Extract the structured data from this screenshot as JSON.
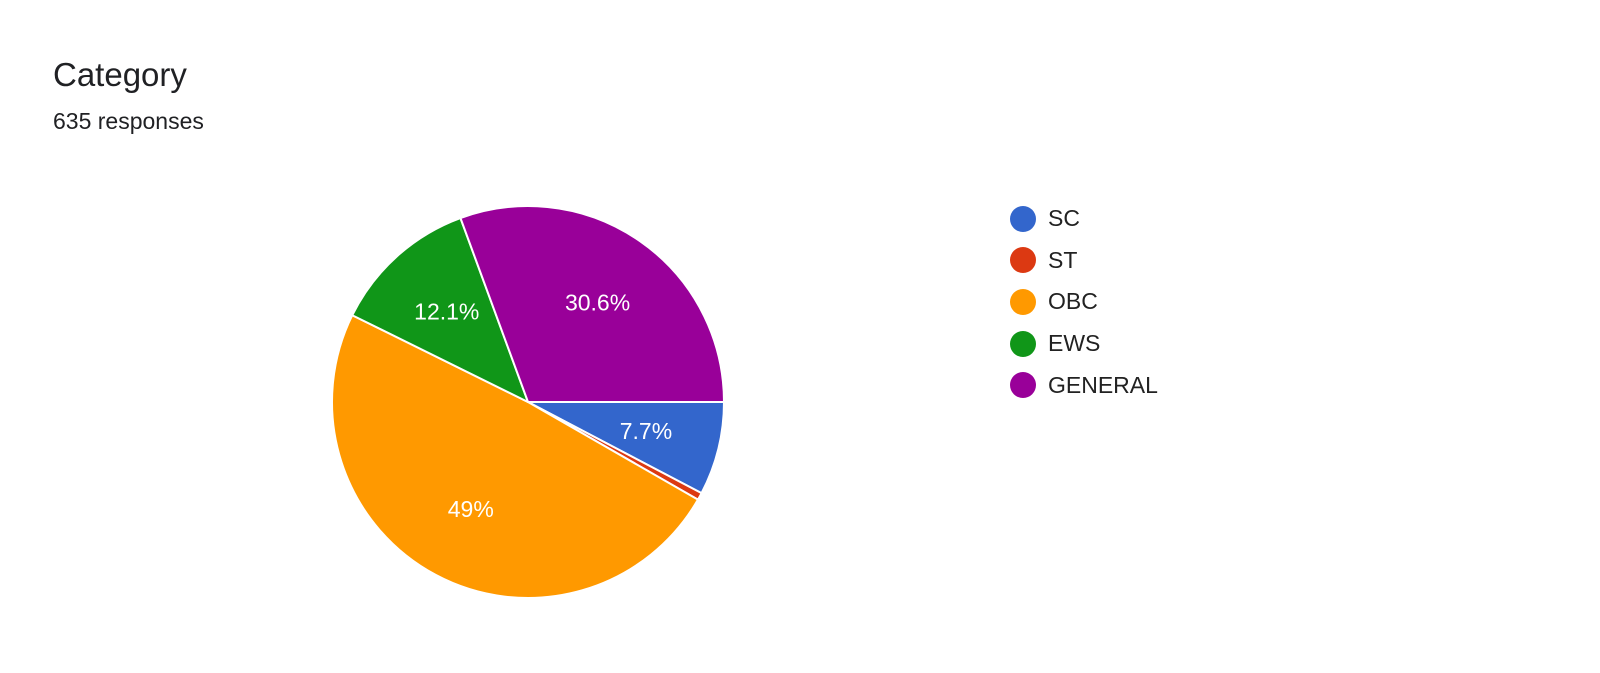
{
  "header": {
    "title": "Category",
    "subtitle": "635 responses"
  },
  "chart_data": {
    "type": "pie",
    "start_angle_deg": 90,
    "direction": "clockwise",
    "slices": [
      {
        "name": "SC",
        "label": "7.7%",
        "value": 7.7,
        "color": "#3366cc"
      },
      {
        "name": "ST",
        "label": "",
        "value": 0.6,
        "color": "#dc3912"
      },
      {
        "name": "OBC",
        "label": "49%",
        "value": 49.0,
        "color": "#ff9900"
      },
      {
        "name": "EWS",
        "label": "12.1%",
        "value": 12.1,
        "color": "#109618"
      },
      {
        "name": "GENERAL",
        "label": "30.6%",
        "value": 30.6,
        "color": "#990099"
      }
    ],
    "legend": {
      "position": "right",
      "entries": [
        "SC",
        "ST",
        "OBC",
        "EWS",
        "GENERAL"
      ]
    }
  }
}
